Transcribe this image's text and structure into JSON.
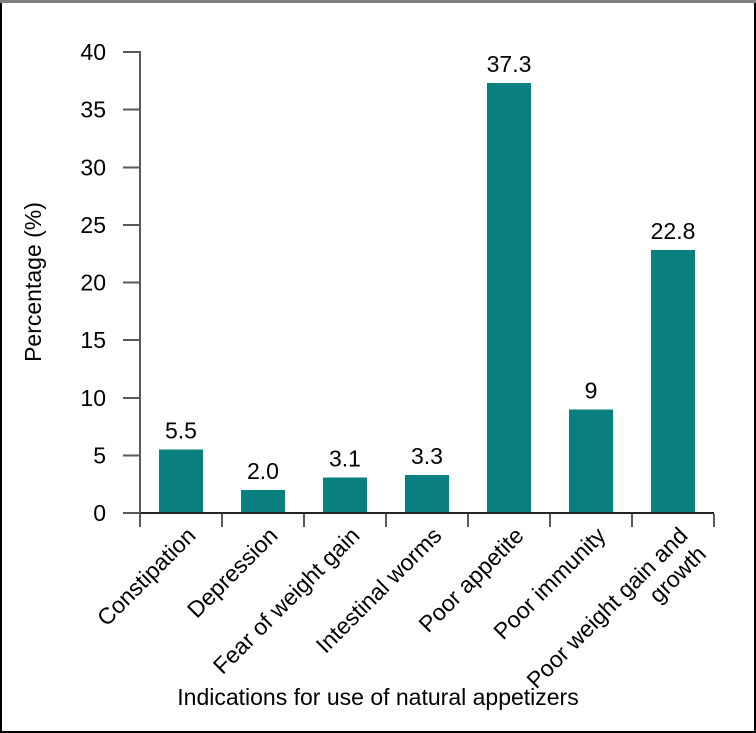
{
  "chart_data": {
    "type": "bar",
    "title": "",
    "xlabel": "Indications for use of natural appetizers",
    "ylabel": "Percentage (%)",
    "categories": [
      "Constipation",
      "Depression",
      "Fear of weight gain",
      "Intestinal worms",
      "Poor appetite",
      "Poor immunity",
      "Poor weight gain and\ngrowth"
    ],
    "values": [
      5.5,
      2.0,
      3.1,
      3.3,
      37.3,
      9,
      22.8
    ],
    "value_labels": [
      "5.5",
      "2.0",
      "3.1",
      "3.3",
      "37.3",
      "9",
      "22.8"
    ],
    "ylim": [
      0,
      40
    ],
    "ytick_step": 5,
    "ytick_labels": [
      "0",
      "5",
      "10",
      "15",
      "20",
      "25",
      "30",
      "35",
      "40"
    ],
    "xtick_rotation": 45,
    "grid": false,
    "legend": null
  },
  "colors": {
    "bar": "#0A7F80",
    "x_axis": "#262626",
    "y_axis": "#595959",
    "tick": "#595959",
    "text": "#000000",
    "frame_border": "#000000",
    "frame_border_top": "#7F7F7F",
    "background": "#FFFFFF"
  }
}
